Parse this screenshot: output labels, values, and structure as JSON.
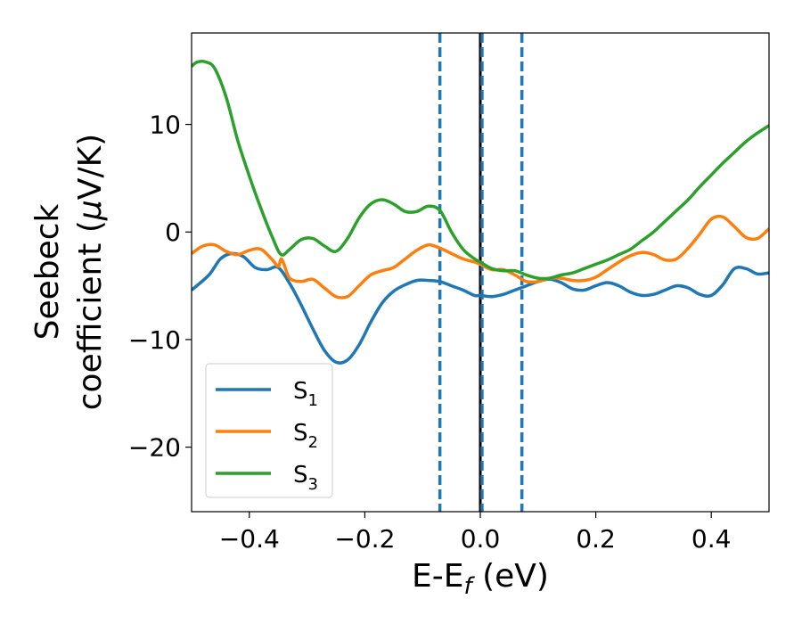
{
  "chart_data": {
    "type": "line",
    "xlabel": {
      "main": "E-E",
      "sub": "f",
      "unit": " (eV)"
    },
    "ylabel": {
      "line1": "Seebeck",
      "line2": "coefficient  (",
      "mu": "μ",
      "unit": "V/K)"
    },
    "xlim": [
      -0.5,
      0.5
    ],
    "ylim": [
      -26,
      18.5
    ],
    "xticks": [
      -0.4,
      -0.2,
      0.0,
      0.2,
      0.4
    ],
    "xtick_labels": [
      "−0.4",
      "−0.2",
      "0.0",
      "0.2",
      "0.4"
    ],
    "yticks": [
      10,
      0,
      -10,
      -20
    ],
    "ytick_labels": [
      "10",
      "0",
      "−10",
      "−20"
    ],
    "grid": false,
    "legend_position": "lower-left",
    "vertical_lines": [
      {
        "x": 0.0,
        "style": "solid",
        "color": "#000000"
      },
      {
        "x": -0.07,
        "style": "dashed",
        "color": "#1f77b4"
      },
      {
        "x": 0.003,
        "style": "dashed",
        "color": "#1f77b4"
      },
      {
        "x": 0.072,
        "style": "dashed",
        "color": "#1f77b4"
      }
    ],
    "series": [
      {
        "name": "S",
        "sub": "1",
        "color": "#1f77b4",
        "points": [
          [
            -0.5,
            -5.4
          ],
          [
            -0.47,
            -4.0
          ],
          [
            -0.45,
            -2.5
          ],
          [
            -0.43,
            -2.0
          ],
          [
            -0.41,
            -2.3
          ],
          [
            -0.39,
            -3.3
          ],
          [
            -0.37,
            -3.5
          ],
          [
            -0.35,
            -3.3
          ],
          [
            -0.33,
            -4.8
          ],
          [
            -0.31,
            -6.8
          ],
          [
            -0.29,
            -9.0
          ],
          [
            -0.27,
            -11.0
          ],
          [
            -0.25,
            -12.1
          ],
          [
            -0.23,
            -11.9
          ],
          [
            -0.21,
            -10.5
          ],
          [
            -0.19,
            -8.4
          ],
          [
            -0.17,
            -6.6
          ],
          [
            -0.15,
            -5.5
          ],
          [
            -0.13,
            -4.9
          ],
          [
            -0.11,
            -4.5
          ],
          [
            -0.09,
            -4.5
          ],
          [
            -0.07,
            -4.6
          ],
          [
            -0.05,
            -5.0
          ],
          [
            -0.03,
            -5.4
          ],
          [
            -0.01,
            -5.9
          ],
          [
            0.0,
            -5.9
          ],
          [
            0.02,
            -6.0
          ],
          [
            0.04,
            -5.8
          ],
          [
            0.06,
            -5.4
          ],
          [
            0.08,
            -5.0
          ],
          [
            0.1,
            -4.6
          ],
          [
            0.12,
            -4.4
          ],
          [
            0.14,
            -4.7
          ],
          [
            0.16,
            -5.3
          ],
          [
            0.18,
            -5.4
          ],
          [
            0.2,
            -5.0
          ],
          [
            0.22,
            -4.7
          ],
          [
            0.24,
            -5.0
          ],
          [
            0.26,
            -5.6
          ],
          [
            0.28,
            -5.9
          ],
          [
            0.3,
            -5.8
          ],
          [
            0.32,
            -5.4
          ],
          [
            0.34,
            -5.0
          ],
          [
            0.36,
            -5.2
          ],
          [
            0.38,
            -5.8
          ],
          [
            0.4,
            -5.9
          ],
          [
            0.42,
            -4.9
          ],
          [
            0.44,
            -3.4
          ],
          [
            0.46,
            -3.4
          ],
          [
            0.48,
            -3.9
          ],
          [
            0.5,
            -3.8
          ]
        ]
      },
      {
        "name": "S",
        "sub": "2",
        "color": "#ff7f0e",
        "points": [
          [
            -0.5,
            -2.0
          ],
          [
            -0.48,
            -1.3
          ],
          [
            -0.46,
            -1.2
          ],
          [
            -0.44,
            -1.8
          ],
          [
            -0.42,
            -2.1
          ],
          [
            -0.4,
            -1.7
          ],
          [
            -0.38,
            -1.6
          ],
          [
            -0.36,
            -2.6
          ],
          [
            -0.35,
            -3.2
          ],
          [
            -0.345,
            -2.5
          ],
          [
            -0.34,
            -3.0
          ],
          [
            -0.33,
            -4.3
          ],
          [
            -0.31,
            -4.6
          ],
          [
            -0.29,
            -4.4
          ],
          [
            -0.27,
            -5.2
          ],
          [
            -0.25,
            -6.0
          ],
          [
            -0.23,
            -6.0
          ],
          [
            -0.21,
            -5.0
          ],
          [
            -0.19,
            -4.0
          ],
          [
            -0.17,
            -3.6
          ],
          [
            -0.15,
            -3.3
          ],
          [
            -0.13,
            -2.5
          ],
          [
            -0.11,
            -1.7
          ],
          [
            -0.09,
            -1.2
          ],
          [
            -0.07,
            -1.5
          ],
          [
            -0.05,
            -2.0
          ],
          [
            -0.03,
            -2.5
          ],
          [
            -0.01,
            -2.8
          ],
          [
            0.0,
            -3.0
          ],
          [
            0.02,
            -3.5
          ],
          [
            0.04,
            -3.5
          ],
          [
            0.06,
            -4.0
          ],
          [
            0.08,
            -4.6
          ],
          [
            0.1,
            -4.6
          ],
          [
            0.12,
            -4.3
          ],
          [
            0.14,
            -4.3
          ],
          [
            0.16,
            -4.5
          ],
          [
            0.18,
            -4.5
          ],
          [
            0.2,
            -4.2
          ],
          [
            0.22,
            -3.5
          ],
          [
            0.24,
            -2.8
          ],
          [
            0.26,
            -2.2
          ],
          [
            0.28,
            -1.9
          ],
          [
            0.3,
            -2.1
          ],
          [
            0.32,
            -2.6
          ],
          [
            0.34,
            -2.5
          ],
          [
            0.36,
            -1.5
          ],
          [
            0.38,
            -0.2
          ],
          [
            0.4,
            1.2
          ],
          [
            0.42,
            1.4
          ],
          [
            0.44,
            0.5
          ],
          [
            0.46,
            -0.5
          ],
          [
            0.48,
            -0.6
          ],
          [
            0.5,
            0.3
          ]
        ]
      },
      {
        "name": "S",
        "sub": "3",
        "color": "#2ca02c",
        "points": [
          [
            -0.5,
            15.4
          ],
          [
            -0.49,
            15.8
          ],
          [
            -0.475,
            15.8
          ],
          [
            -0.46,
            15.2
          ],
          [
            -0.44,
            12.5
          ],
          [
            -0.42,
            8.5
          ],
          [
            -0.4,
            5.2
          ],
          [
            -0.38,
            2.2
          ],
          [
            -0.36,
            -0.5
          ],
          [
            -0.345,
            -2.1
          ],
          [
            -0.33,
            -1.6
          ],
          [
            -0.31,
            -0.7
          ],
          [
            -0.29,
            -0.6
          ],
          [
            -0.27,
            -1.3
          ],
          [
            -0.25,
            -1.8
          ],
          [
            -0.23,
            -0.6
          ],
          [
            -0.21,
            1.3
          ],
          [
            -0.19,
            2.6
          ],
          [
            -0.17,
            3.0
          ],
          [
            -0.15,
            2.6
          ],
          [
            -0.13,
            1.9
          ],
          [
            -0.11,
            1.9
          ],
          [
            -0.09,
            2.4
          ],
          [
            -0.07,
            2.0
          ],
          [
            -0.05,
            0.0
          ],
          [
            -0.03,
            -1.6
          ],
          [
            -0.01,
            -2.5
          ],
          [
            0.0,
            -2.8
          ],
          [
            0.02,
            -3.4
          ],
          [
            0.04,
            -3.6
          ],
          [
            0.06,
            -3.6
          ],
          [
            0.08,
            -4.0
          ],
          [
            0.1,
            -4.3
          ],
          [
            0.12,
            -4.3
          ],
          [
            0.14,
            -4.0
          ],
          [
            0.16,
            -3.8
          ],
          [
            0.18,
            -3.4
          ],
          [
            0.2,
            -3.0
          ],
          [
            0.22,
            -2.6
          ],
          [
            0.24,
            -2.1
          ],
          [
            0.26,
            -1.6
          ],
          [
            0.28,
            -0.8
          ],
          [
            0.3,
            0.0
          ],
          [
            0.32,
            1.0
          ],
          [
            0.34,
            2.0
          ],
          [
            0.36,
            3.0
          ],
          [
            0.38,
            4.2
          ],
          [
            0.4,
            5.3
          ],
          [
            0.42,
            6.4
          ],
          [
            0.44,
            7.4
          ],
          [
            0.46,
            8.4
          ],
          [
            0.48,
            9.2
          ],
          [
            0.5,
            9.9
          ]
        ]
      }
    ]
  }
}
